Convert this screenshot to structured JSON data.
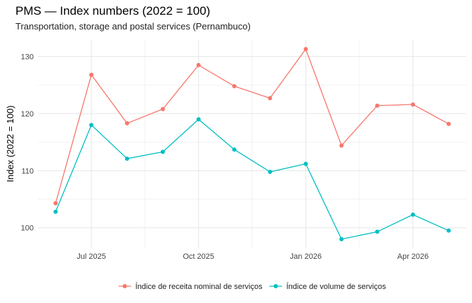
{
  "chart_data": {
    "type": "line",
    "title": "PMS — Index numbers (2022 = 100)",
    "subtitle": "Transportation, storage and postal services (Pernambuco)",
    "xlabel": "",
    "ylabel": "Index (2022 = 100)",
    "x": [
      "2025-06",
      "2025-07",
      "2025-08",
      "2025-09",
      "2025-10",
      "2025-11",
      "2025-12",
      "2026-01",
      "2026-02",
      "2026-03",
      "2026-04",
      "2026-05"
    ],
    "x_ticks": [
      {
        "value": "2025-07",
        "label": "Jul 2025"
      },
      {
        "value": "2025-10",
        "label": "Oct 2025"
      },
      {
        "value": "2026-01",
        "label": "Jan 2026"
      },
      {
        "value": "2026-04",
        "label": "Apr 2026"
      }
    ],
    "y_ticks": [
      100,
      110,
      120,
      130
    ],
    "ylim": [
      96.4,
      132.9
    ],
    "grid": true,
    "legend_position": "bottom",
    "series": [
      {
        "name": "Índice de receita nominal de serviços",
        "color": "#F8766D",
        "values": [
          104.3,
          126.8,
          118.3,
          120.8,
          128.5,
          124.8,
          122.7,
          131.3,
          114.4,
          121.4,
          121.6,
          118.2
        ]
      },
      {
        "name": "Índice de volume de serviços",
        "color": "#00BFC4",
        "values": [
          102.8,
          118.0,
          112.1,
          113.3,
          119.0,
          113.7,
          109.8,
          111.2,
          98.0,
          99.3,
          102.3,
          99.5
        ]
      }
    ]
  }
}
